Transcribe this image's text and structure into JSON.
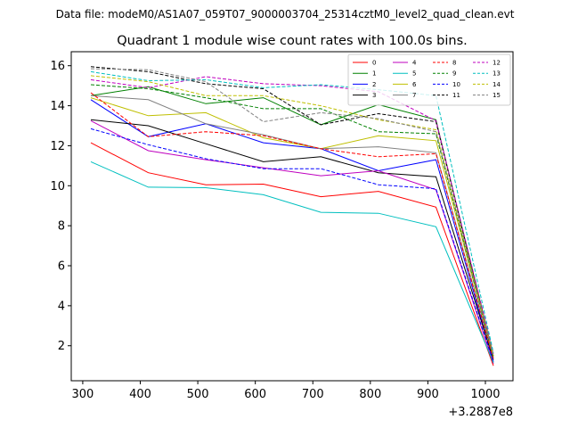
{
  "chart_data": {
    "type": "line",
    "suptitle": "Data file: modeM0/AS1A07_059T07_9000003704_25314cztM0_level2_quad_clean.evt",
    "title": "Quadrant 1 module wise count rates with 100.0s bins.",
    "xlabel": "",
    "ylabel": "",
    "x_offset_label": "+3.2887e8",
    "x": [
      314,
      414,
      514,
      614,
      714,
      814,
      914,
      1014
    ],
    "xlim": [
      280,
      1048
    ],
    "ylim": [
      0.25,
      16.7
    ],
    "xticks": [
      300,
      400,
      500,
      600,
      700,
      800,
      900,
      1000
    ],
    "yticks": [
      2,
      4,
      6,
      8,
      10,
      12,
      14,
      16
    ],
    "legend_position": "top-right",
    "series": [
      {
        "name": "0",
        "color": "#ff0000",
        "dash": "solid",
        "values": [
          12.15,
          10.65,
          10.05,
          10.08,
          9.45,
          9.72,
          8.93,
          1.0
        ]
      },
      {
        "name": "1",
        "color": "#008000",
        "dash": "solid",
        "values": [
          14.5,
          14.95,
          14.1,
          14.4,
          13.05,
          14.05,
          13.3,
          1.4
        ]
      },
      {
        "name": "2",
        "color": "#0000ff",
        "dash": "solid",
        "values": [
          14.3,
          12.45,
          13.1,
          12.15,
          11.85,
          10.75,
          11.3,
          1.2
        ]
      },
      {
        "name": "3",
        "color": "#000000",
        "dash": "solid",
        "values": [
          13.3,
          13.0,
          12.1,
          11.2,
          11.45,
          10.65,
          10.45,
          1.3
        ]
      },
      {
        "name": "4",
        "color": "#bf00bf",
        "dash": "solid",
        "values": [
          13.25,
          11.75,
          11.3,
          10.9,
          10.5,
          10.75,
          9.8,
          1.1
        ]
      },
      {
        "name": "5",
        "color": "#00bfbf",
        "dash": "solid",
        "values": [
          11.2,
          9.93,
          9.9,
          9.55,
          8.67,
          8.62,
          7.95,
          1.15
        ]
      },
      {
        "name": "6",
        "color": "#bfbf00",
        "dash": "solid",
        "values": [
          14.4,
          13.5,
          13.65,
          12.4,
          11.85,
          12.5,
          12.25,
          1.5
        ]
      },
      {
        "name": "7",
        "color": "#808080",
        "dash": "solid",
        "values": [
          14.5,
          14.3,
          13.1,
          12.55,
          11.85,
          11.95,
          11.65,
          1.4
        ]
      },
      {
        "name": "8",
        "color": "#ff0000",
        "dash": "dashed",
        "values": [
          14.65,
          12.45,
          12.7,
          12.5,
          11.85,
          11.45,
          11.6,
          1.3
        ]
      },
      {
        "name": "9",
        "color": "#008000",
        "dash": "dashed",
        "values": [
          15.05,
          14.85,
          14.4,
          13.85,
          13.85,
          12.7,
          12.6,
          1.4
        ]
      },
      {
        "name": "10",
        "color": "#0000ff",
        "dash": "dashed",
        "values": [
          12.85,
          12.05,
          11.35,
          10.85,
          10.85,
          10.05,
          9.85,
          1.2
        ]
      },
      {
        "name": "11",
        "color": "#000000",
        "dash": "dashed",
        "values": [
          15.95,
          15.7,
          15.1,
          14.85,
          13.05,
          13.6,
          13.2,
          1.5
        ]
      },
      {
        "name": "12",
        "color": "#bf00bf",
        "dash": "dashed",
        "values": [
          15.3,
          14.9,
          15.45,
          15.1,
          15.0,
          14.7,
          13.25,
          1.6
        ]
      },
      {
        "name": "13",
        "color": "#00bfbf",
        "dash": "dashed",
        "values": [
          15.7,
          15.25,
          15.3,
          14.9,
          15.05,
          14.8,
          14.5,
          1.65
        ]
      },
      {
        "name": "14",
        "color": "#bfbf00",
        "dash": "dashed",
        "values": [
          15.5,
          15.2,
          14.5,
          14.5,
          14.0,
          13.3,
          12.8,
          1.5
        ]
      },
      {
        "name": "15",
        "color": "#808080",
        "dash": "dashed",
        "values": [
          15.85,
          15.8,
          15.2,
          13.2,
          13.65,
          13.35,
          12.7,
          1.45
        ]
      }
    ]
  }
}
